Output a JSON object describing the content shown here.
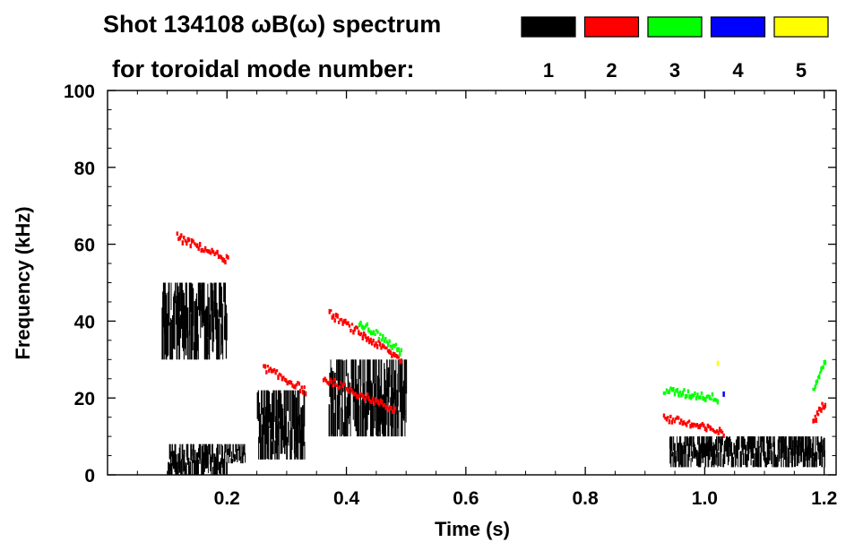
{
  "chart_data": {
    "type": "scatter",
    "title": "Shot 134108 ωB(ω) spectrum",
    "subtitle": "for toroidal mode number:",
    "xlabel": "Time (s)",
    "ylabel": "Frequency (kHz)",
    "xlim": [
      0,
      1.22
    ],
    "ylim": [
      0,
      100
    ],
    "x_ticks": [
      0.2,
      0.4,
      0.6,
      0.8,
      1.0,
      1.2
    ],
    "x_tick_labels": [
      "0.2",
      "0.4",
      "0.6",
      "0.8",
      "1.0",
      "1.2"
    ],
    "y_ticks": [
      0,
      20,
      40,
      60,
      80,
      100
    ],
    "y_tick_labels": [
      "0",
      "20",
      "40",
      "60",
      "80",
      "100"
    ],
    "grid": false,
    "legend_position": "top-right",
    "series": [
      {
        "name": "1",
        "color": "#000000",
        "regions": [
          {
            "t": [
              0.09,
              0.2
            ],
            "f": [
              30,
              50
            ]
          },
          {
            "t": [
              0.1,
              0.2
            ],
            "f": [
              0,
              8
            ]
          },
          {
            "t": [
              0.2,
              0.23
            ],
            "f": [
              3,
              8
            ]
          },
          {
            "t": [
              0.25,
              0.33
            ],
            "f": [
              4,
              22
            ]
          },
          {
            "t": [
              0.37,
              0.5
            ],
            "f": [
              10,
              30
            ]
          },
          {
            "t": [
              0.94,
              1.2
            ],
            "f": [
              2,
              10
            ]
          }
        ]
      },
      {
        "name": "2",
        "color": "#ff0000",
        "lines": [
          {
            "t": [
              0.115,
              0.2
            ],
            "f": [
              62,
              56
            ]
          },
          {
            "t": [
              0.26,
              0.33
            ],
            "f": [
              28,
              22
            ]
          },
          {
            "t": [
              0.37,
              0.49
            ],
            "f": [
              42,
              30
            ]
          },
          {
            "t": [
              0.36,
              0.48
            ],
            "f": [
              25,
              17
            ]
          },
          {
            "t": [
              0.93,
              1.03
            ],
            "f": [
              15,
              11
            ]
          },
          {
            "t": [
              1.18,
              1.2
            ],
            "f": [
              14,
              19
            ]
          }
        ]
      },
      {
        "name": "3",
        "color": "#00ff00",
        "lines": [
          {
            "t": [
              0.42,
              0.49
            ],
            "f": [
              40,
              32
            ]
          },
          {
            "t": [
              0.93,
              1.02
            ],
            "f": [
              22,
              20
            ]
          },
          {
            "t": [
              1.18,
              1.2
            ],
            "f": [
              22,
              30
            ]
          }
        ]
      },
      {
        "name": "4",
        "color": "#0000ff",
        "points": [
          [
            1.03,
            21
          ]
        ]
      },
      {
        "name": "5",
        "color": "#ffff00",
        "points": [
          [
            1.02,
            29
          ]
        ]
      }
    ]
  }
}
